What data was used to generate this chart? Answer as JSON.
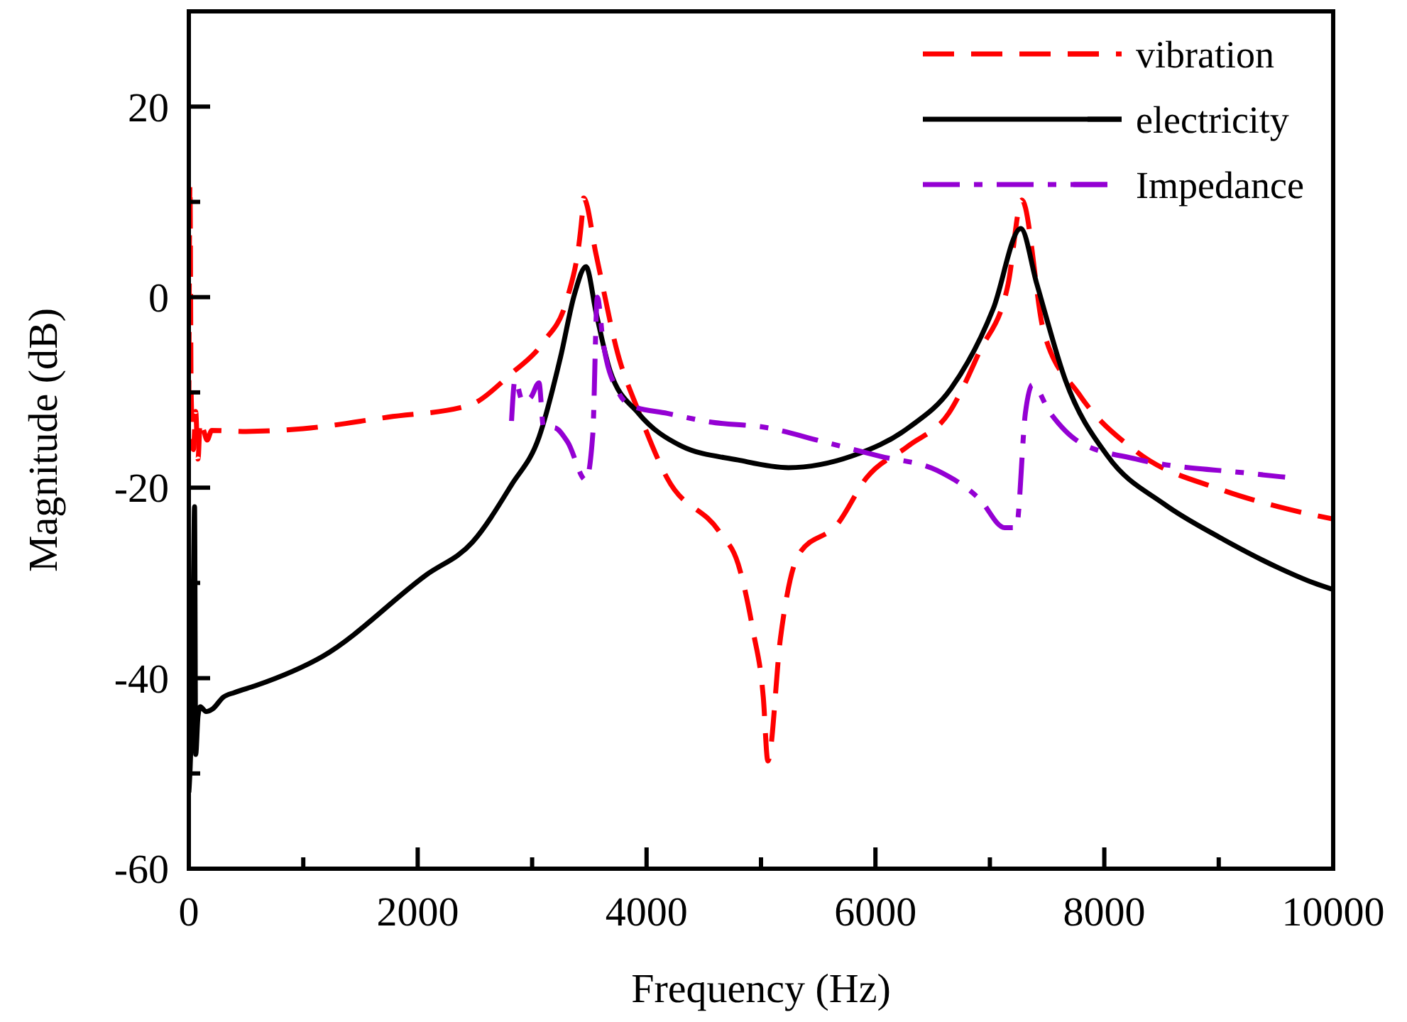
{
  "chart_data": {
    "type": "line",
    "xlabel": "Frequency (Hz)",
    "ylabel": "Magnitude (dB)",
    "xlim": [
      0,
      10000
    ],
    "ylim": [
      -60,
      30
    ],
    "xticks": [
      0,
      {
        "value": 1000,
        "label": null
      },
      2000,
      {
        "value": 3000,
        "label": null
      },
      4000,
      {
        "value": 5000,
        "label": null
      },
      6000,
      {
        "value": 7000,
        "label": null
      },
      8000,
      {
        "value": 9000,
        "label": null
      },
      10000
    ],
    "yticks": [
      -60,
      {
        "value": -50,
        "label": null
      },
      -40,
      {
        "value": -30,
        "label": null
      },
      -20,
      {
        "value": -10,
        "label": null
      },
      0,
      {
        "value": 10,
        "label": null
      },
      20
    ],
    "grid": false,
    "legend": "top right",
    "series": [
      {
        "name": "vibration",
        "color": "#ff0000",
        "line_style": "dashed",
        "x": [
          0,
          10,
          20,
          40,
          60,
          80,
          100,
          130,
          160,
          200,
          500,
          1000,
          1740,
          2440,
          2820,
          3100,
          3310,
          3440,
          3450,
          3560,
          3750,
          3930,
          4180,
          4640,
          4800,
          4930,
          5020,
          5060,
          5170,
          5330,
          5670,
          5920,
          6290,
          6640,
          6910,
          7160,
          7280,
          7470,
          7780,
          8280,
          9020,
          9520,
          10000
        ],
        "values": [
          -12,
          11.9,
          -10,
          -16,
          -12,
          -17,
          -13,
          -14,
          -15,
          -14,
          -14.1,
          -13.8,
          -12.6,
          -11.4,
          -8,
          -4.7,
          0,
          9,
          10.4,
          4.4,
          -6,
          -12,
          -19,
          -24.7,
          -28,
          -35,
          -42,
          -48.7,
          -35.8,
          -27,
          -23.8,
          -19,
          -15.6,
          -12.2,
          -5.7,
          1.4,
          10.2,
          -3.6,
          -10.2,
          -16.2,
          -20.2,
          -22,
          -23.3
        ]
      },
      {
        "name": "electricity",
        "color": "#000000",
        "line_style": "solid",
        "x": [
          0,
          20,
          40,
          50,
          60,
          80,
          100,
          150,
          210,
          300,
          400,
          580,
          1170,
          2070,
          2480,
          2820,
          3060,
          3250,
          3370,
          3470,
          3560,
          3680,
          3930,
          4300,
          4800,
          5240,
          5790,
          6290,
          6660,
          7030,
          7270,
          7410,
          7660,
          8030,
          8520,
          9020,
          9520,
          9830,
          10000
        ],
        "values": [
          -52,
          -46,
          -30,
          -22,
          -48,
          -44,
          -43,
          -43.5,
          -43.2,
          -42,
          -41.5,
          -40.8,
          -37.7,
          -29.2,
          -25.7,
          -19.7,
          -14.7,
          -6.2,
          0.3,
          3.2,
          -1.7,
          -7.7,
          -12.2,
          -15.6,
          -17.1,
          -17.9,
          -16.7,
          -13.7,
          -9.6,
          -1.2,
          7.2,
          1.4,
          -8.7,
          -16.7,
          -21.7,
          -25.3,
          -28.4,
          -30,
          -30.7
        ]
      },
      {
        "name": "Impedance",
        "color": "#9400d3",
        "line_style": "dashdot",
        "x": [
          2820,
          2850,
          2920,
          2990,
          3060,
          3100,
          3190,
          3310,
          3470,
          3530,
          3570,
          3620,
          3750,
          3870,
          4180,
          4550,
          5050,
          5550,
          6040,
          6540,
          6910,
          7130,
          7230,
          7310,
          7370,
          7530,
          7780,
          8280,
          9270,
          9580
        ],
        "values": [
          -13,
          -8.7,
          -11,
          -10.5,
          -9,
          -13.7,
          -13.7,
          -15.2,
          -19.2,
          -14.4,
          0,
          -4.7,
          -9.9,
          -11.4,
          -12.2,
          -13.1,
          -13.7,
          -15.2,
          -16.7,
          -18.2,
          -21.2,
          -24.2,
          -24.2,
          -12.2,
          -9.2,
          -12.2,
          -15.2,
          -17,
          -18.5,
          -18.9
        ]
      }
    ]
  }
}
